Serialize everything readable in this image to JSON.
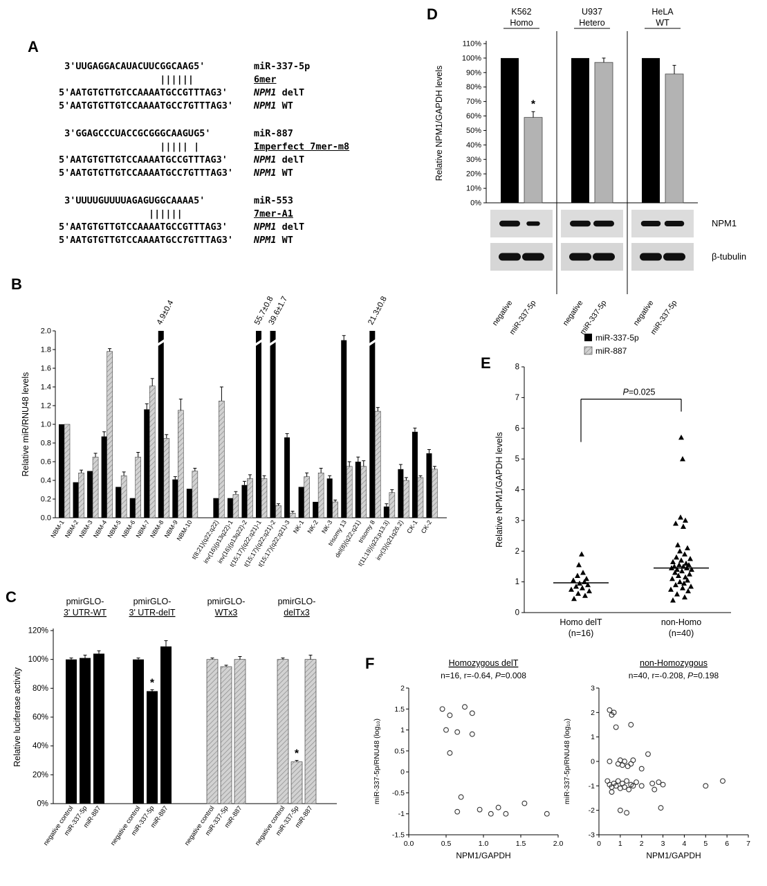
{
  "figure": {
    "panel_labels": {
      "A": "A",
      "B": "B",
      "C": "C",
      "D": "D",
      "E": "E",
      "F": "F"
    },
    "colors": {
      "bar_black": "#000000",
      "bar_gray": "#b3b3b3",
      "hatch_gray": "#d2d2d2",
      "band_dark": "#101010"
    }
  },
  "panel_a": {
    "blocks": [
      {
        "mirna_seq": " 3'UUGAGGACAUACUUCGGCAAG5'",
        "mirna_name": "miR-337-5p",
        "pairing": "                  ||||||",
        "site_type": "6mer",
        "delt_seq": "5'AATGTGTTGTCCAAAATGCCGTTTAG3'",
        "gene": "NPM1",
        "delt_label": "delT",
        "wt_pre": "5'AATGTGTTGTCCAAAATGCC",
        "wt_ins": "T",
        "wt_post": "GTTTAG3'",
        "wt_label": "WT"
      },
      {
        "mirna_seq": " 3'GGAGCCCUACCGCGGGCAAGUG5'",
        "mirna_name": "miR-887",
        "pairing": "                  ||||| |",
        "site_type": "Imperfect 7mer-m8",
        "delt_seq": "5'AATGTGTTGTCCAAAATGCCGTTTAG3'",
        "gene": "NPM1",
        "delt_label": "delT",
        "wt_pre": "5'AATGTGTTGTCCAAAATGCC",
        "wt_ins": "T",
        "wt_post": "GTTTAG3'",
        "wt_label": "WT"
      },
      {
        "mirna_seq": " 3'UUUUGUUUUAGAGUGGCAAAA5'",
        "mirna_name": "miR-553",
        "pairing": "                ||||||",
        "site_type": "7mer-A1",
        "delt_seq": "5'AATGTGTTGTCCAAAATGCCGTTTAG3'",
        "gene": "NPM1",
        "delt_label": "delT",
        "wt_pre": "5'AATGTGTTGTCCAAAATGCC",
        "wt_ins": "T",
        "wt_post": "GTTTAG3'",
        "wt_label": "WT"
      }
    ]
  },
  "chart_data": [
    {
      "id": "panel-b",
      "type": "bar",
      "ylabel": "Relative miR/RNU48 levels",
      "ylim": [
        0,
        2.0
      ],
      "ytick_step": 0.2,
      "gap_after_index": 9,
      "legend": [
        "miR-337-5p",
        "miR-887"
      ],
      "categories": [
        "NBM-1",
        "NBM-2",
        "NBM-3",
        "NBM-4",
        "NBM-5",
        "NBM-6",
        "NBM-7",
        "NBM-8",
        "NBM-9",
        "NBM-10",
        "t(8;21)(q22;q22)",
        "inv(16)(p13q22)-1",
        "inv(16)(p13q22)-2",
        "t(15;17)(q22;q21)-1",
        "t(15;17)(q22;q21)-2",
        "t(15;17)(q22;q21)-3",
        "NK-1",
        "NK-2",
        "NK-3",
        "trisomy 13",
        "del(8)(q22;q21)",
        "trisomy 8",
        "t(11;19)(q23;p13.3)",
        "inv(3)(q21q26.2)",
        "CK-1",
        "CK-2"
      ],
      "series": [
        {
          "name": "miR-337-5p",
          "color": "#000000",
          "values": [
            1.0,
            0.38,
            0.5,
            0.87,
            0.33,
            0.21,
            1.16,
            4.9,
            0.41,
            0.31,
            0.21,
            0.21,
            0.35,
            55.7,
            39.6,
            0.86,
            0.33,
            0.17,
            0.42,
            1.9,
            0.6,
            21.3,
            0.12,
            0.52,
            0.92,
            0.69
          ],
          "errs": [
            0,
            0,
            0,
            0.05,
            0,
            0,
            0.06,
            0,
            0.03,
            0,
            0,
            0,
            0.04,
            0,
            0,
            0.04,
            0,
            0,
            0.03,
            0.05,
            0.05,
            0,
            0.03,
            0.05,
            0.04,
            0.04
          ]
        },
        {
          "name": "miR-887",
          "color": "#d2d2d2",
          "values": [
            1.0,
            0.48,
            0.65,
            1.78,
            0.45,
            0.65,
            1.41,
            0.85,
            1.15,
            0.5,
            1.25,
            0.25,
            0.42,
            0.42,
            0.13,
            0.05,
            0.44,
            0.48,
            0.17,
            0.55,
            0.55,
            1.14,
            0.27,
            0.4,
            0.43,
            0.52
          ],
          "errs": [
            0,
            0.03,
            0.04,
            0.03,
            0.04,
            0.05,
            0.08,
            0.04,
            0.12,
            0.03,
            0.15,
            0.03,
            0.04,
            0.03,
            0.02,
            0.02,
            0.04,
            0.05,
            0.02,
            0.05,
            0.06,
            0.04,
            0.03,
            0.03,
            0.02,
            0.03
          ]
        }
      ],
      "annotations": [
        {
          "index": 7,
          "text": "4.9±0.4"
        },
        {
          "index": 13,
          "text": "55.7±0.8"
        },
        {
          "index": 14,
          "text": "39.6±1.7"
        },
        {
          "index": 21,
          "text": "21.3±0.8"
        }
      ]
    },
    {
      "id": "panel-c",
      "type": "bar",
      "ylabel": "Relative luciferase activity",
      "ylim": [
        0,
        120
      ],
      "ytick_step": 20,
      "ytick_suffix": "%",
      "bar_labels": [
        "negative control",
        "miR-337-5p",
        "miR-887"
      ],
      "groups": [
        {
          "title": "pmirGLO-",
          "subtitle": "3' UTR-WT",
          "color": "#000000",
          "values": [
            100,
            101,
            104
          ],
          "errs": [
            1,
            2,
            2
          ],
          "stars": [
            false,
            false,
            false
          ]
        },
        {
          "title": "pmirGLO-",
          "subtitle": "3' UTR-delT",
          "color": "#000000",
          "values": [
            100,
            78,
            109
          ],
          "errs": [
            1,
            1,
            4
          ],
          "stars": [
            false,
            true,
            false
          ]
        },
        {
          "title": "pmirGLO-",
          "subtitle": "WTx3",
          "color": "#b3b3b3",
          "values": [
            100,
            95,
            100
          ],
          "errs": [
            1,
            1,
            2
          ],
          "stars": [
            false,
            false,
            false
          ]
        },
        {
          "title": "pmirGLO-",
          "subtitle": "delTx3",
          "color": "#b3b3b3",
          "values": [
            100,
            29,
            100
          ],
          "errs": [
            1,
            1,
            3
          ],
          "stars": [
            false,
            true,
            false
          ]
        }
      ]
    },
    {
      "id": "panel-d",
      "type": "bar",
      "ylabel": "Relative NPM1/GAPDH levels",
      "ylim": [
        0,
        110
      ],
      "ytick_step": 10,
      "ytick_suffix": "%",
      "bar_labels": [
        "negative",
        "miR-337-5p"
      ],
      "bar_colors": [
        "#000000",
        "#b3b3b3"
      ],
      "groups": [
        {
          "title": "K562",
          "subtitle": "Homo",
          "values": [
            100,
            59
          ],
          "errs": [
            0,
            4
          ],
          "stars": [
            false,
            true
          ]
        },
        {
          "title": "U937",
          "subtitle": "Hetero",
          "values": [
            100,
            97
          ],
          "errs": [
            0,
            3
          ],
          "stars": [
            false,
            false
          ]
        },
        {
          "title": "HeLA",
          "subtitle": "WT",
          "values": [
            100,
            89
          ],
          "errs": [
            0,
            6
          ],
          "stars": [
            false,
            false
          ]
        }
      ],
      "blots": [
        {
          "label": "NPM1",
          "bands": [
            [
              1,
              0.65
            ],
            [
              1,
              1
            ],
            [
              0.95,
              0.95
            ]
          ]
        },
        {
          "label": "β-tubulin",
          "bands": [
            [
              1,
              1
            ],
            [
              1,
              1
            ],
            [
              1,
              1
            ]
          ]
        }
      ]
    },
    {
      "id": "panel-e",
      "type": "scatter",
      "marker": "triangle",
      "ylabel": "Relative NPM1/GAPDH levels",
      "ylim": [
        0,
        8
      ],
      "ytick_step": 1,
      "pvalue_p": "P",
      "pvalue_rest": "=0.025",
      "groups": [
        {
          "label": "Homo delT",
          "sublabel": "(n=16)",
          "median": 0.97,
          "points": [
            [
              -10,
              0.45
            ],
            [
              6,
              0.55
            ],
            [
              -4,
              0.62
            ],
            [
              12,
              0.7
            ],
            [
              -14,
              0.75
            ],
            [
              2,
              0.8
            ],
            [
              -7,
              0.85
            ],
            [
              10,
              0.9
            ],
            [
              -2,
              0.95
            ],
            [
              5,
              1.0
            ],
            [
              -11,
              1.05
            ],
            [
              8,
              1.1
            ],
            [
              -5,
              1.2
            ],
            [
              3,
              1.3
            ],
            [
              -3,
              1.55
            ],
            [
              1,
              1.9
            ]
          ]
        },
        {
          "label": "non-Homo",
          "sublabel": "(n=40)",
          "median": 1.45,
          "points": [
            [
              -12,
              0.4
            ],
            [
              5,
              0.5
            ],
            [
              -6,
              0.6
            ],
            [
              10,
              0.7
            ],
            [
              -15,
              0.75
            ],
            [
              2,
              0.8
            ],
            [
              14,
              0.85
            ],
            [
              -8,
              0.9
            ],
            [
              4,
              0.95
            ],
            [
              -2,
              1.0
            ],
            [
              9,
              1.05
            ],
            [
              -13,
              1.1
            ],
            [
              6,
              1.15
            ],
            [
              -4,
              1.2
            ],
            [
              12,
              1.25
            ],
            [
              -9,
              1.3
            ],
            [
              1,
              1.35
            ],
            [
              15,
              1.4
            ],
            [
              -6,
              1.4
            ],
            [
              8,
              1.45
            ],
            [
              -14,
              1.45
            ],
            [
              3,
              1.5
            ],
            [
              -10,
              1.5
            ],
            [
              11,
              1.55
            ],
            [
              -3,
              1.55
            ],
            [
              7,
              1.6
            ],
            [
              -12,
              1.65
            ],
            [
              0,
              1.7
            ],
            [
              13,
              1.75
            ],
            [
              -7,
              1.8
            ],
            [
              5,
              1.9
            ],
            [
              -2,
              2.0
            ],
            [
              9,
              2.1
            ],
            [
              -5,
              2.2
            ],
            [
              3,
              2.8
            ],
            [
              -8,
              2.9
            ],
            [
              6,
              3.0
            ],
            [
              -1,
              3.1
            ],
            [
              2,
              5.0
            ],
            [
              0,
              5.7
            ]
          ]
        }
      ]
    },
    {
      "id": "panel-f1",
      "type": "scatter",
      "marker": "circle",
      "title": "Homozygous delT",
      "sub_pre": "n=16, r=-0.64, ",
      "sub_p": "P",
      "sub_post": "=0.008",
      "xlabel": "NPM1/GAPDH",
      "ylabel": "miR-337-5p/RNU48 (log₁₀)",
      "xlim": [
        0,
        2.0
      ],
      "xtick_step": 0.5,
      "xtick_decimals": 1,
      "ylim": [
        -1.5,
        2.0
      ],
      "ytick_step": 0.5,
      "points": [
        [
          0.45,
          1.5
        ],
        [
          0.55,
          1.35
        ],
        [
          0.75,
          1.55
        ],
        [
          0.85,
          1.4
        ],
        [
          0.5,
          1.0
        ],
        [
          0.65,
          0.95
        ],
        [
          0.85,
          0.9
        ],
        [
          0.55,
          0.45
        ],
        [
          0.7,
          -0.6
        ],
        [
          0.65,
          -0.95
        ],
        [
          0.95,
          -0.9
        ],
        [
          1.1,
          -1.0
        ],
        [
          1.2,
          -0.85
        ],
        [
          1.3,
          -1.0
        ],
        [
          1.55,
          -0.75
        ],
        [
          1.85,
          -1.0
        ]
      ]
    },
    {
      "id": "panel-f2",
      "type": "scatter",
      "marker": "circle",
      "title": "non-Homozygous",
      "sub_pre": "n=40, r=-0.208, ",
      "sub_p": "P",
      "sub_post": "=0.198",
      "xlabel": "NPM1/GAPDH",
      "ylabel": "miR-337-5p/RNU48 (log₁₀)",
      "xlim": [
        0,
        7
      ],
      "xtick_step": 1,
      "xtick_decimals": 0,
      "ylim": [
        -3,
        3
      ],
      "ytick_step": 1,
      "points": [
        [
          0.5,
          2.1
        ],
        [
          0.7,
          2.0
        ],
        [
          0.6,
          1.9
        ],
        [
          0.8,
          1.4
        ],
        [
          1.5,
          1.5
        ],
        [
          0.5,
          0.0
        ],
        [
          0.9,
          -0.1
        ],
        [
          1.0,
          0.05
        ],
        [
          1.1,
          -0.15
        ],
        [
          1.2,
          0.0
        ],
        [
          1.35,
          -0.2
        ],
        [
          1.5,
          -0.1
        ],
        [
          1.6,
          0.05
        ],
        [
          2.0,
          -0.3
        ],
        [
          2.3,
          0.3
        ],
        [
          0.4,
          -0.8
        ],
        [
          0.5,
          -0.95
        ],
        [
          0.6,
          -1.05
        ],
        [
          0.6,
          -1.25
        ],
        [
          0.7,
          -0.9
        ],
        [
          0.8,
          -1.0
        ],
        [
          0.9,
          -0.8
        ],
        [
          1.0,
          -1.1
        ],
        [
          1.1,
          -0.9
        ],
        [
          1.2,
          -1.05
        ],
        [
          1.3,
          -0.8
        ],
        [
          1.4,
          -1.15
        ],
        [
          1.5,
          -0.95
        ],
        [
          1.6,
          -1.0
        ],
        [
          1.75,
          -0.85
        ],
        [
          2.0,
          -1.0
        ],
        [
          2.5,
          -0.9
        ],
        [
          2.6,
          -1.15
        ],
        [
          2.8,
          -0.85
        ],
        [
          3.0,
          -0.95
        ],
        [
          1.0,
          -2.0
        ],
        [
          1.3,
          -2.1
        ],
        [
          2.9,
          -1.9
        ],
        [
          5.0,
          -1.0
        ],
        [
          5.8,
          -0.8
        ]
      ]
    }
  ]
}
